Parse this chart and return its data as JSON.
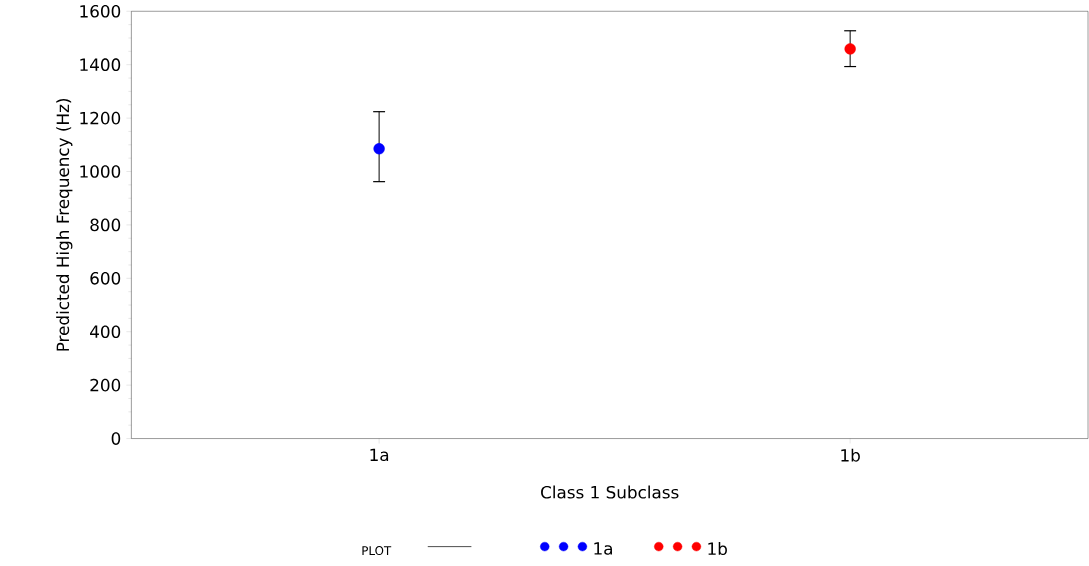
{
  "chart_data": {
    "type": "scatter",
    "xlabel": "Class 1 Subclass",
    "ylabel": "Predicted High Frequency (Hz)",
    "legend_title": "PLOT",
    "legend": "bottom",
    "marker": "circle",
    "categories": [
      "1a",
      "1b"
    ],
    "ylim": [
      0,
      1600
    ],
    "yticks": [
      0,
      200,
      400,
      600,
      800,
      1000,
      1200,
      1400,
      1600
    ],
    "series": [
      {
        "name": "1a",
        "color": "#0000ff",
        "values": [
          1085,
          null
        ],
        "errors": [
          [
            962,
            1224
          ],
          null
        ]
      },
      {
        "name": "1b",
        "color": "#ff0000",
        "values": [
          null,
          1459
        ],
        "errors": [
          null,
          [
            1393,
            1527
          ]
        ]
      }
    ]
  }
}
